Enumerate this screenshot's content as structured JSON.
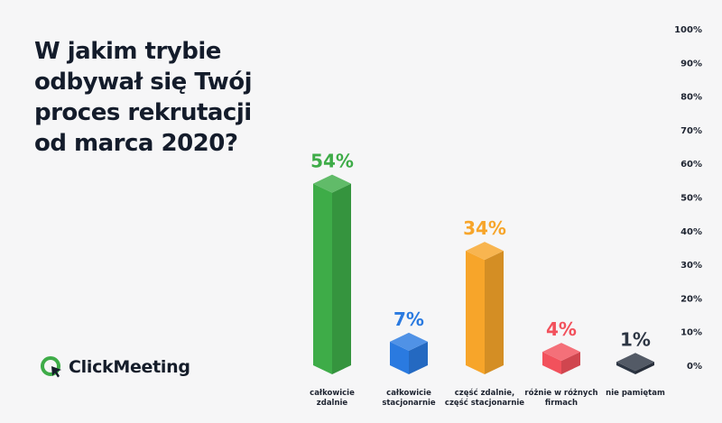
{
  "title_lines": [
    "W jakim trybie",
    "odbywał się Twój",
    "proces rekrutacji",
    "od marca 2020?"
  ],
  "brand": {
    "name": "ClickMeeting",
    "accent": "#3eac48"
  },
  "chart_data": {
    "type": "bar",
    "title": "W jakim trybie odbywał się Twój proces rekrutacji od marca 2020?",
    "categories": [
      [
        "całkowicie",
        "zdalnie"
      ],
      [
        "całkowicie",
        "stacjonarnie"
      ],
      [
        "część zdalnie,",
        "część stacjonarnie"
      ],
      [
        "różnie w różnych",
        "firmach"
      ],
      [
        "nie pamiętam"
      ]
    ],
    "values": [
      54,
      7,
      34,
      4,
      1
    ],
    "value_labels": [
      "54%",
      "7%",
      "34%",
      "4%",
      "1%"
    ],
    "colors": [
      "#3eac48",
      "#2a7ae0",
      "#f7a52a",
      "#f2515c",
      "#2d3644"
    ],
    "ylim": [
      0,
      100
    ],
    "y_ticks": [
      "0%",
      "10%",
      "20%",
      "30%",
      "40%",
      "50%",
      "60%",
      "70%",
      "80%",
      "90%",
      "100%"
    ],
    "y_axis_position": "right",
    "grid": false
  }
}
